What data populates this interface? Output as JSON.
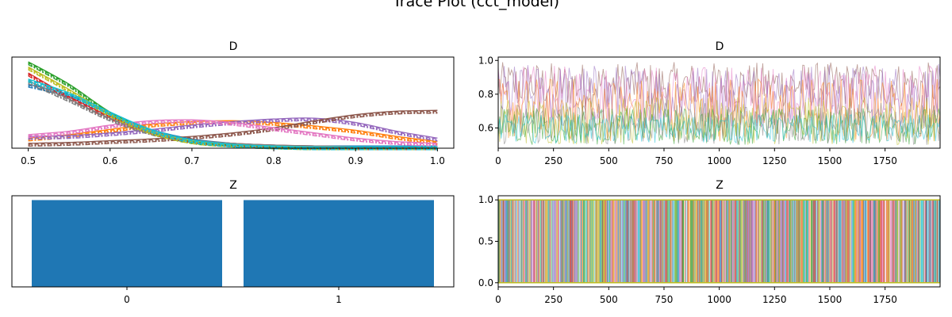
{
  "figure": {
    "suptitle": "Trace Plot (cct_model)"
  },
  "colors": {
    "cycle": [
      "#1f77b4",
      "#ff7f0e",
      "#2ca02c",
      "#d62728",
      "#9467bd",
      "#8c564b",
      "#e377c2",
      "#7f7f7f",
      "#bcbd22",
      "#17becf"
    ],
    "bar": "#1f77b4",
    "axis": "#000000"
  },
  "chart_data": [
    {
      "panel": "D-density",
      "type": "line",
      "title": "D",
      "xlabel": "",
      "ylabel": "",
      "xlim": [
        0.48,
        1.02
      ],
      "ylim": [
        0,
        1.05
      ],
      "xticks": [
        0.5,
        0.6,
        0.7,
        0.8,
        0.9,
        1.0
      ],
      "xtick_labels": [
        "0.5",
        "0.6",
        "0.7",
        "0.8",
        "0.9",
        "1.0"
      ],
      "yticks_visible": false,
      "grid": false,
      "x": [
        0.5,
        0.55,
        0.6,
        0.65,
        0.7,
        0.75,
        0.8,
        0.85,
        0.9,
        0.95,
        1.0
      ],
      "series": [
        {
          "color": "#1f77b4",
          "values": [
            0.72,
            0.6,
            0.38,
            0.2,
            0.09,
            0.04,
            0.02,
            0.01,
            0.01,
            0.01,
            0.01
          ]
        },
        {
          "color": "#ff7f0e",
          "values": [
            0.1,
            0.14,
            0.2,
            0.26,
            0.29,
            0.3,
            0.28,
            0.24,
            0.19,
            0.12,
            0.06
          ]
        },
        {
          "color": "#2ca02c",
          "values": [
            0.98,
            0.72,
            0.4,
            0.18,
            0.07,
            0.03,
            0.01,
            0.0,
            0.0,
            0.0,
            0.0
          ]
        },
        {
          "color": "#d62728",
          "values": [
            0.85,
            0.58,
            0.35,
            0.18,
            0.08,
            0.04,
            0.02,
            0.01,
            0.0,
            0.0,
            0.0
          ]
        },
        {
          "color": "#9467bd",
          "values": [
            0.12,
            0.13,
            0.16,
            0.2,
            0.25,
            0.29,
            0.32,
            0.33,
            0.28,
            0.18,
            0.1
          ]
        },
        {
          "color": "#8c564b",
          "values": [
            0.04,
            0.05,
            0.07,
            0.09,
            0.12,
            0.16,
            0.22,
            0.3,
            0.37,
            0.41,
            0.42
          ]
        },
        {
          "color": "#e377c2",
          "values": [
            0.14,
            0.18,
            0.25,
            0.3,
            0.31,
            0.28,
            0.22,
            0.16,
            0.1,
            0.06,
            0.04
          ]
        },
        {
          "color": "#7f7f7f",
          "values": [
            0.76,
            0.55,
            0.33,
            0.17,
            0.08,
            0.04,
            0.02,
            0.01,
            0.0,
            0.0,
            0.0
          ]
        },
        {
          "color": "#bcbd22",
          "values": [
            0.92,
            0.66,
            0.38,
            0.18,
            0.07,
            0.03,
            0.01,
            0.0,
            0.0,
            0.0,
            0.0
          ]
        },
        {
          "color": "#17becf",
          "values": [
            0.78,
            0.62,
            0.4,
            0.2,
            0.08,
            0.03,
            0.01,
            0.0,
            0.0,
            0.0,
            0.0
          ]
        }
      ]
    },
    {
      "panel": "D-trace",
      "type": "line",
      "title": "D",
      "xlabel": "",
      "ylabel": "",
      "xlim": [
        0,
        1999
      ],
      "ylim": [
        0.48,
        1.02
      ],
      "xticks": [
        0,
        250,
        500,
        750,
        1000,
        1250,
        1500,
        1750
      ],
      "xtick_labels": [
        "0",
        "250",
        "500",
        "750",
        "1000",
        "1250",
        "1500",
        "1750"
      ],
      "yticks": [
        0.6,
        0.8,
        1.0
      ],
      "ytick_labels": [
        "0.6",
        "0.8",
        "1.0"
      ],
      "grid": false,
      "draws": 2000,
      "bands": [
        {
          "color": "#8c564b",
          "low": 0.72,
          "high": 0.99
        },
        {
          "color": "#e377c2",
          "low": 0.62,
          "high": 0.97
        },
        {
          "color": "#9467bd",
          "low": 0.6,
          "high": 0.98
        },
        {
          "color": "#ff7f0e",
          "low": 0.52,
          "high": 0.9
        },
        {
          "color": "#bcbd22",
          "low": 0.5,
          "high": 0.78
        },
        {
          "color": "#2ca02c",
          "low": 0.5,
          "high": 0.72
        },
        {
          "color": "#7f7f7f",
          "low": 0.5,
          "high": 0.75
        },
        {
          "color": "#17becf",
          "low": 0.51,
          "high": 0.68
        }
      ]
    },
    {
      "panel": "Z-hist",
      "type": "bar",
      "title": "Z",
      "xlabel": "",
      "ylabel": "",
      "categories": [
        "0",
        "1"
      ],
      "values": [
        1.0,
        1.0
      ],
      "ylim": [
        0,
        1.05
      ],
      "yticks_visible": false,
      "grid": false
    },
    {
      "panel": "Z-trace",
      "type": "line",
      "title": "Z",
      "xlabel": "",
      "ylabel": "",
      "xlim": [
        0,
        1999
      ],
      "ylim": [
        -0.05,
        1.05
      ],
      "xticks": [
        0,
        250,
        500,
        750,
        1000,
        1250,
        1500,
        1750
      ],
      "xtick_labels": [
        "0",
        "250",
        "500",
        "750",
        "1000",
        "1250",
        "1500",
        "1750"
      ],
      "yticks": [
        0.0,
        0.5,
        1.0
      ],
      "ytick_labels": [
        "0.0",
        "0.5",
        "1.0"
      ],
      "grid": false,
      "draws": 2000,
      "values_range": [
        0,
        1
      ]
    }
  ]
}
